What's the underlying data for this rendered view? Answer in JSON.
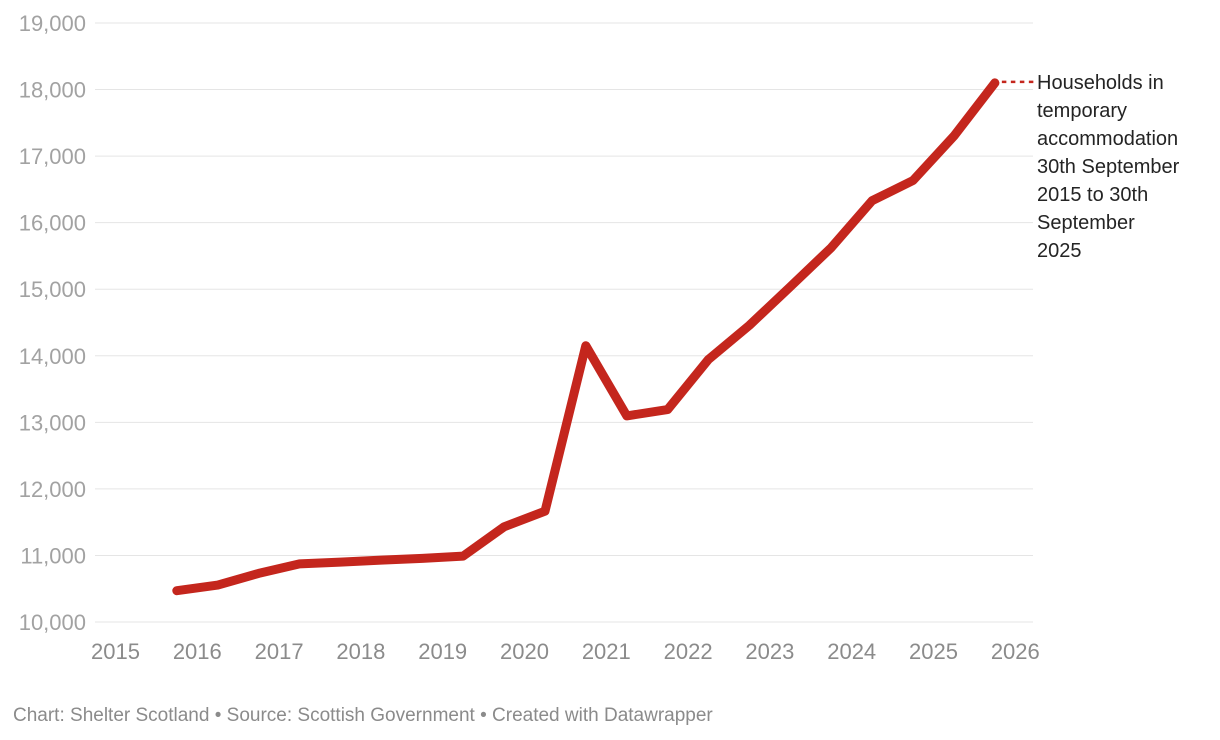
{
  "chart_data": {
    "type": "line",
    "title": "Households in temporary accommodation 30th September 2015 to 30th September 2025",
    "series": [
      {
        "name": "Households in temporary accommodation",
        "color": "#c4261d",
        "points": [
          {
            "period": "Sep 2015",
            "x": 2015.75,
            "value": 10470
          },
          {
            "period": "Mar 2016",
            "x": 2016.25,
            "value": 10555
          },
          {
            "period": "Sep 2016",
            "x": 2016.75,
            "value": 10730
          },
          {
            "period": "Mar 2017",
            "x": 2017.25,
            "value": 10873
          },
          {
            "period": "Sep 2017",
            "x": 2017.75,
            "value": 10900
          },
          {
            "period": "Mar 2018",
            "x": 2018.25,
            "value": 10930
          },
          {
            "period": "Sep 2018",
            "x": 2018.75,
            "value": 10955
          },
          {
            "period": "Mar 2019",
            "x": 2019.25,
            "value": 10990
          },
          {
            "period": "Sep 2019",
            "x": 2019.75,
            "value": 11430
          },
          {
            "period": "Mar 2020",
            "x": 2020.25,
            "value": 11665
          },
          {
            "period": "Sep 2020",
            "x": 2020.75,
            "value": 14151
          },
          {
            "period": "Mar 2021",
            "x": 2021.25,
            "value": 13097
          },
          {
            "period": "Sep 2021",
            "x": 2021.75,
            "value": 13192
          },
          {
            "period": "Mar 2022",
            "x": 2022.25,
            "value": 13945
          },
          {
            "period": "Sep 2022",
            "x": 2022.75,
            "value": 14458
          },
          {
            "period": "Mar 2023",
            "x": 2023.25,
            "value": 15039
          },
          {
            "period": "Sep 2023",
            "x": 2023.75,
            "value": 15625
          },
          {
            "period": "Mar 2024",
            "x": 2024.25,
            "value": 16330
          },
          {
            "period": "Sep 2024",
            "x": 2024.75,
            "value": 16634
          },
          {
            "period": "Mar 2025",
            "x": 2025.25,
            "value": 17300
          },
          {
            "period": "Sep 2025",
            "x": 2025.75,
            "value": 18100
          }
        ]
      }
    ],
    "x_axis": {
      "ticks": [
        2015,
        2016,
        2017,
        2018,
        2019,
        2020,
        2021,
        2022,
        2023,
        2024,
        2025,
        2026
      ],
      "tick_labels": [
        "2015",
        "2016",
        "2017",
        "2018",
        "2019",
        "2020",
        "2021",
        "2022",
        "2023",
        "2024",
        "2025",
        "2026"
      ]
    },
    "y_axis": {
      "min": 10000,
      "max": 19000,
      "step": 1000,
      "tick_labels": [
        "10,000",
        "11,000",
        "12,000",
        "13,000",
        "14,000",
        "15,000",
        "16,000",
        "17,000",
        "18,000",
        "19,000"
      ],
      "gridlines": true
    },
    "legend_position": "direct label at line end",
    "grid": "horizontal only"
  },
  "annotation": {
    "full_text": "Households in temporary accommodation 30th September 2015 to 30th September 2025",
    "lines": [
      "Households in",
      "temporary",
      "accommodation",
      "30th September",
      "2015 to 30th",
      "September",
      "2025"
    ],
    "connector_style": "dotted"
  },
  "footer": {
    "text": "Chart: Shelter Scotland • Source: Scottish Government • Created with Datawrapper"
  },
  "colors": {
    "line": "#c4261d",
    "grid": "#e5e5e5",
    "y_tick_text": "#a2a2a2",
    "x_tick_text": "#8b8b8b",
    "annotation_text": "#242424",
    "footer_text": "#8b8b8b",
    "background": "#ffffff"
  }
}
